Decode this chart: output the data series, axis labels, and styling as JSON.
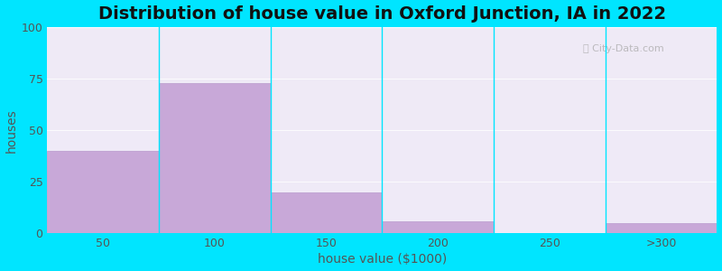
{
  "title": "Distribution of house value in Oxford Junction, IA in 2022",
  "xlabel": "house value ($1000)",
  "ylabel": "houses",
  "bar_labels": [
    "50",
    "100",
    "150",
    "200",
    "250",
    ">300"
  ],
  "bar_heights": [
    40,
    73,
    20,
    6,
    0,
    5
  ],
  "bar_color": "#c8a8d8",
  "bar_edgecolor": "#b899cc",
  "ylim": [
    0,
    100
  ],
  "yticks": [
    0,
    25,
    50,
    75,
    100
  ],
  "background_outer": "#00e5ff",
  "bg_top_left": "#d8eed8",
  "bg_top_right": "#eef8f8",
  "bg_bottom_left": "#f0eaf8",
  "bg_bottom_right": "#f8f8f8",
  "title_fontsize": 14,
  "axis_label_fontsize": 10,
  "tick_fontsize": 9,
  "watermark": "City-Data.com"
}
